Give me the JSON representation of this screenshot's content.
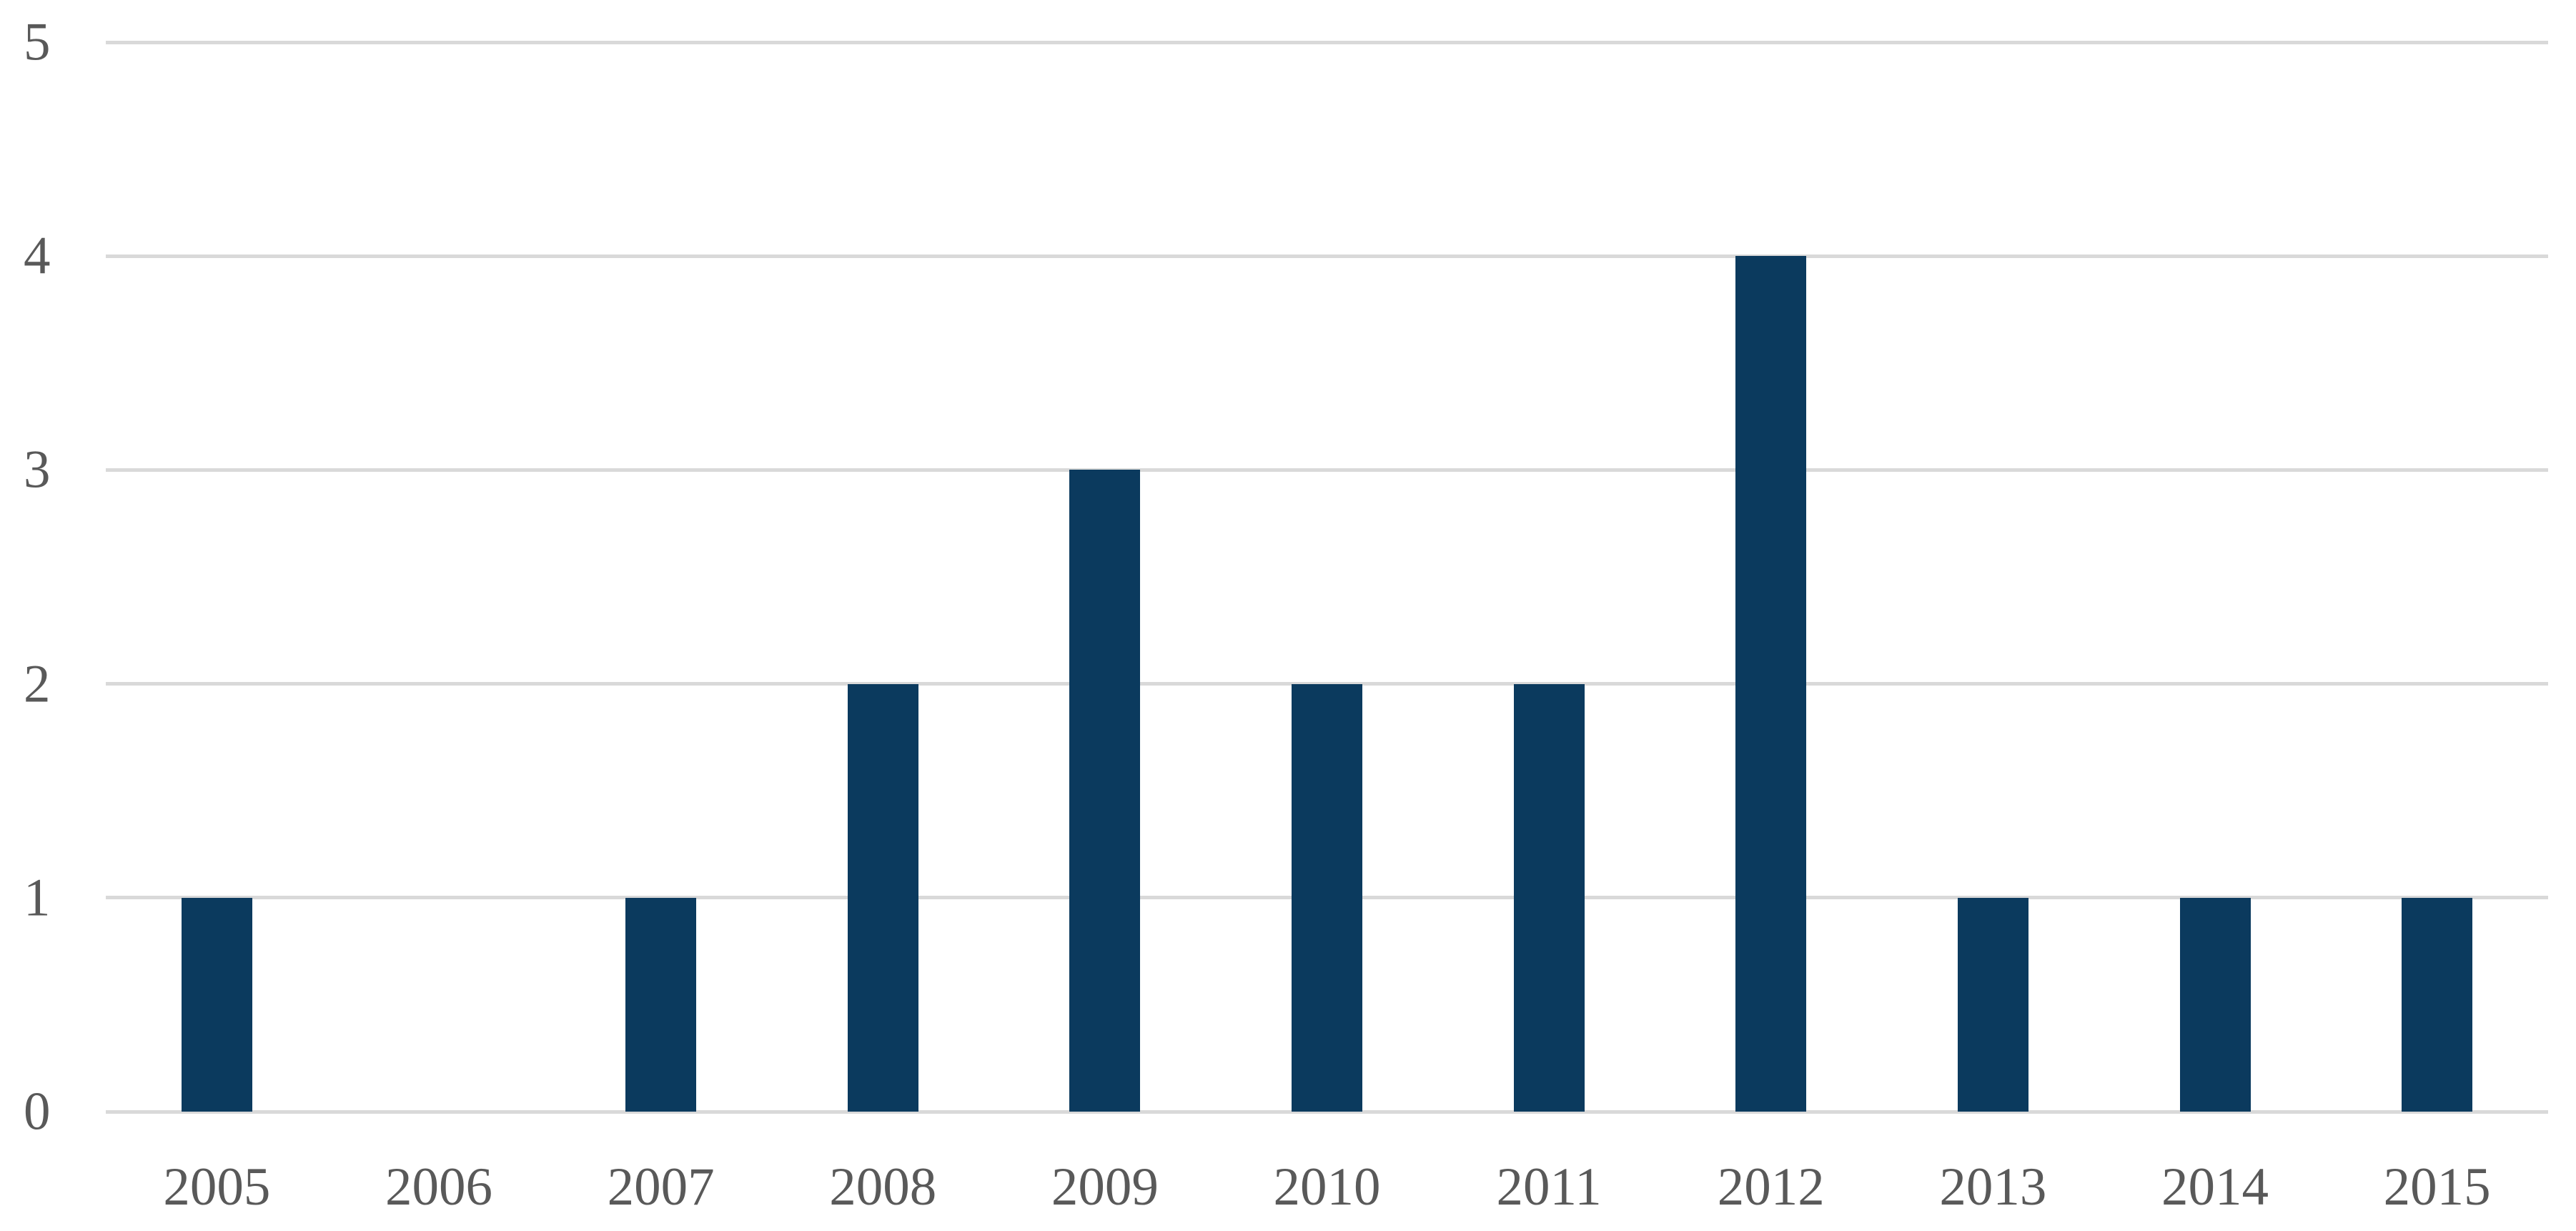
{
  "chart_data": {
    "type": "bar",
    "title": "",
    "xlabel": "",
    "ylabel": "",
    "categories": [
      "2005",
      "2006",
      "2007",
      "2008",
      "2009",
      "2010",
      "2011",
      "2012",
      "2013",
      "2014",
      "2015"
    ],
    "values": [
      1,
      0,
      1,
      2,
      3,
      2,
      2,
      4,
      1,
      1,
      1
    ],
    "ylim": [
      0,
      5
    ],
    "yticks": [
      0,
      1,
      2,
      3,
      4,
      5
    ],
    "grid": true,
    "legend": false,
    "colors": {
      "bar": "#0B3A5E",
      "gridline": "#D9D9D9",
      "tick_label": "#595959",
      "background": "#FFFFFF"
    }
  }
}
